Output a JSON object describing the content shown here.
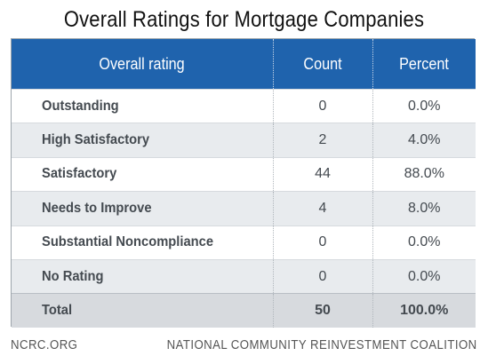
{
  "title": "Overall Ratings for Mortgage Companies",
  "table": {
    "headers": [
      "Overall rating",
      "Count",
      "Percent"
    ],
    "rows": [
      {
        "rating": "Outstanding",
        "count": "0",
        "percent": "0.0%"
      },
      {
        "rating": "High Satisfactory",
        "count": "2",
        "percent": "4.0%"
      },
      {
        "rating": "Satisfactory",
        "count": "44",
        "percent": "88.0%"
      },
      {
        "rating": "Needs to Improve",
        "count": "4",
        "percent": "8.0%"
      },
      {
        "rating": "Substantial Noncompliance",
        "count": "0",
        "percent": "0.0%"
      },
      {
        "rating": "No Rating",
        "count": "0",
        "percent": "0.0%"
      }
    ],
    "total": {
      "rating": "Total",
      "count": "50",
      "percent": "100.0%"
    }
  },
  "footer": {
    "left": "NCRC.ORG",
    "right": "NATIONAL COMMUNITY REINVESTMENT COALITION"
  },
  "colors": {
    "header_bg": "#1f63ad",
    "stripe_bg": "#e8ebee",
    "total_bg": "#d7dade"
  }
}
